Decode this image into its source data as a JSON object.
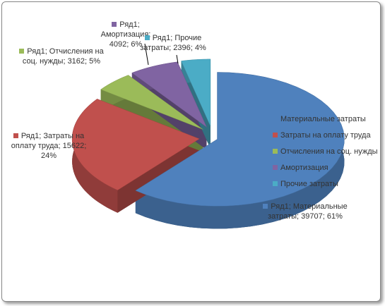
{
  "chart_data": {
    "type": "pie3d",
    "series_name": "Ряд1",
    "categories": [
      "Материальные затраты",
      "Затраты на оплату труда",
      "Отчисления на соц. нужды",
      "Амортизация",
      "Прочие затраты"
    ],
    "values": [
      39707,
      15622,
      3162,
      4092,
      2396
    ],
    "percents": [
      61,
      24,
      5,
      6,
      4
    ],
    "value_labels": [
      "Ряд1; Материальные затраты; 39707; 61%",
      "Ряд1; Затраты на оплату труда; 15622; 24%",
      "Ряд1; Отчисления на соц. нужды; 3162; 5%",
      "Ряд1; Амортизация; 4092; 6%",
      "Ряд1; Прочие затраты; 2396; 4%"
    ],
    "colors": [
      "#4f81bd",
      "#c0504d",
      "#9bbb59",
      "#8064a2",
      "#4bacc6"
    ],
    "legend": "right"
  }
}
